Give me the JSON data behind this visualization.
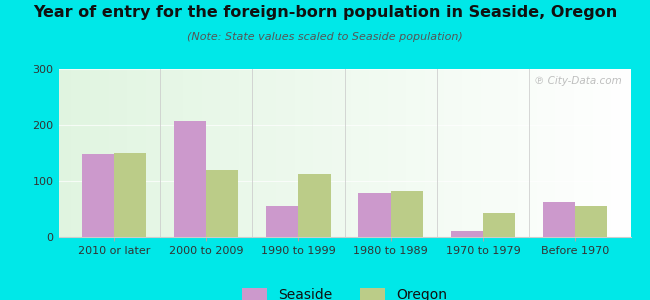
{
  "categories": [
    "2010 or later",
    "2000 to 2009",
    "1990 to 1999",
    "1980 to 1989",
    "1970 to 1979",
    "Before 1970"
  ],
  "seaside_values": [
    148,
    207,
    55,
    78,
    10,
    63
  ],
  "oregon_values": [
    150,
    120,
    113,
    83,
    43,
    55
  ],
  "seaside_color": "#cc99cc",
  "oregon_color": "#bbcc88",
  "title": "Year of entry for the foreign-born population in Seaside, Oregon",
  "subtitle": "(Note: State values scaled to Seaside population)",
  "ylim": [
    0,
    300
  ],
  "yticks": [
    0,
    100,
    200,
    300
  ],
  "background_color": "#00e8e8",
  "bar_width": 0.35,
  "legend_labels": [
    "Seaside",
    "Oregon"
  ],
  "watermark": "℗ City-Data.com",
  "title_fontsize": 11.5,
  "subtitle_fontsize": 8,
  "tick_fontsize": 8,
  "legend_fontsize": 10
}
